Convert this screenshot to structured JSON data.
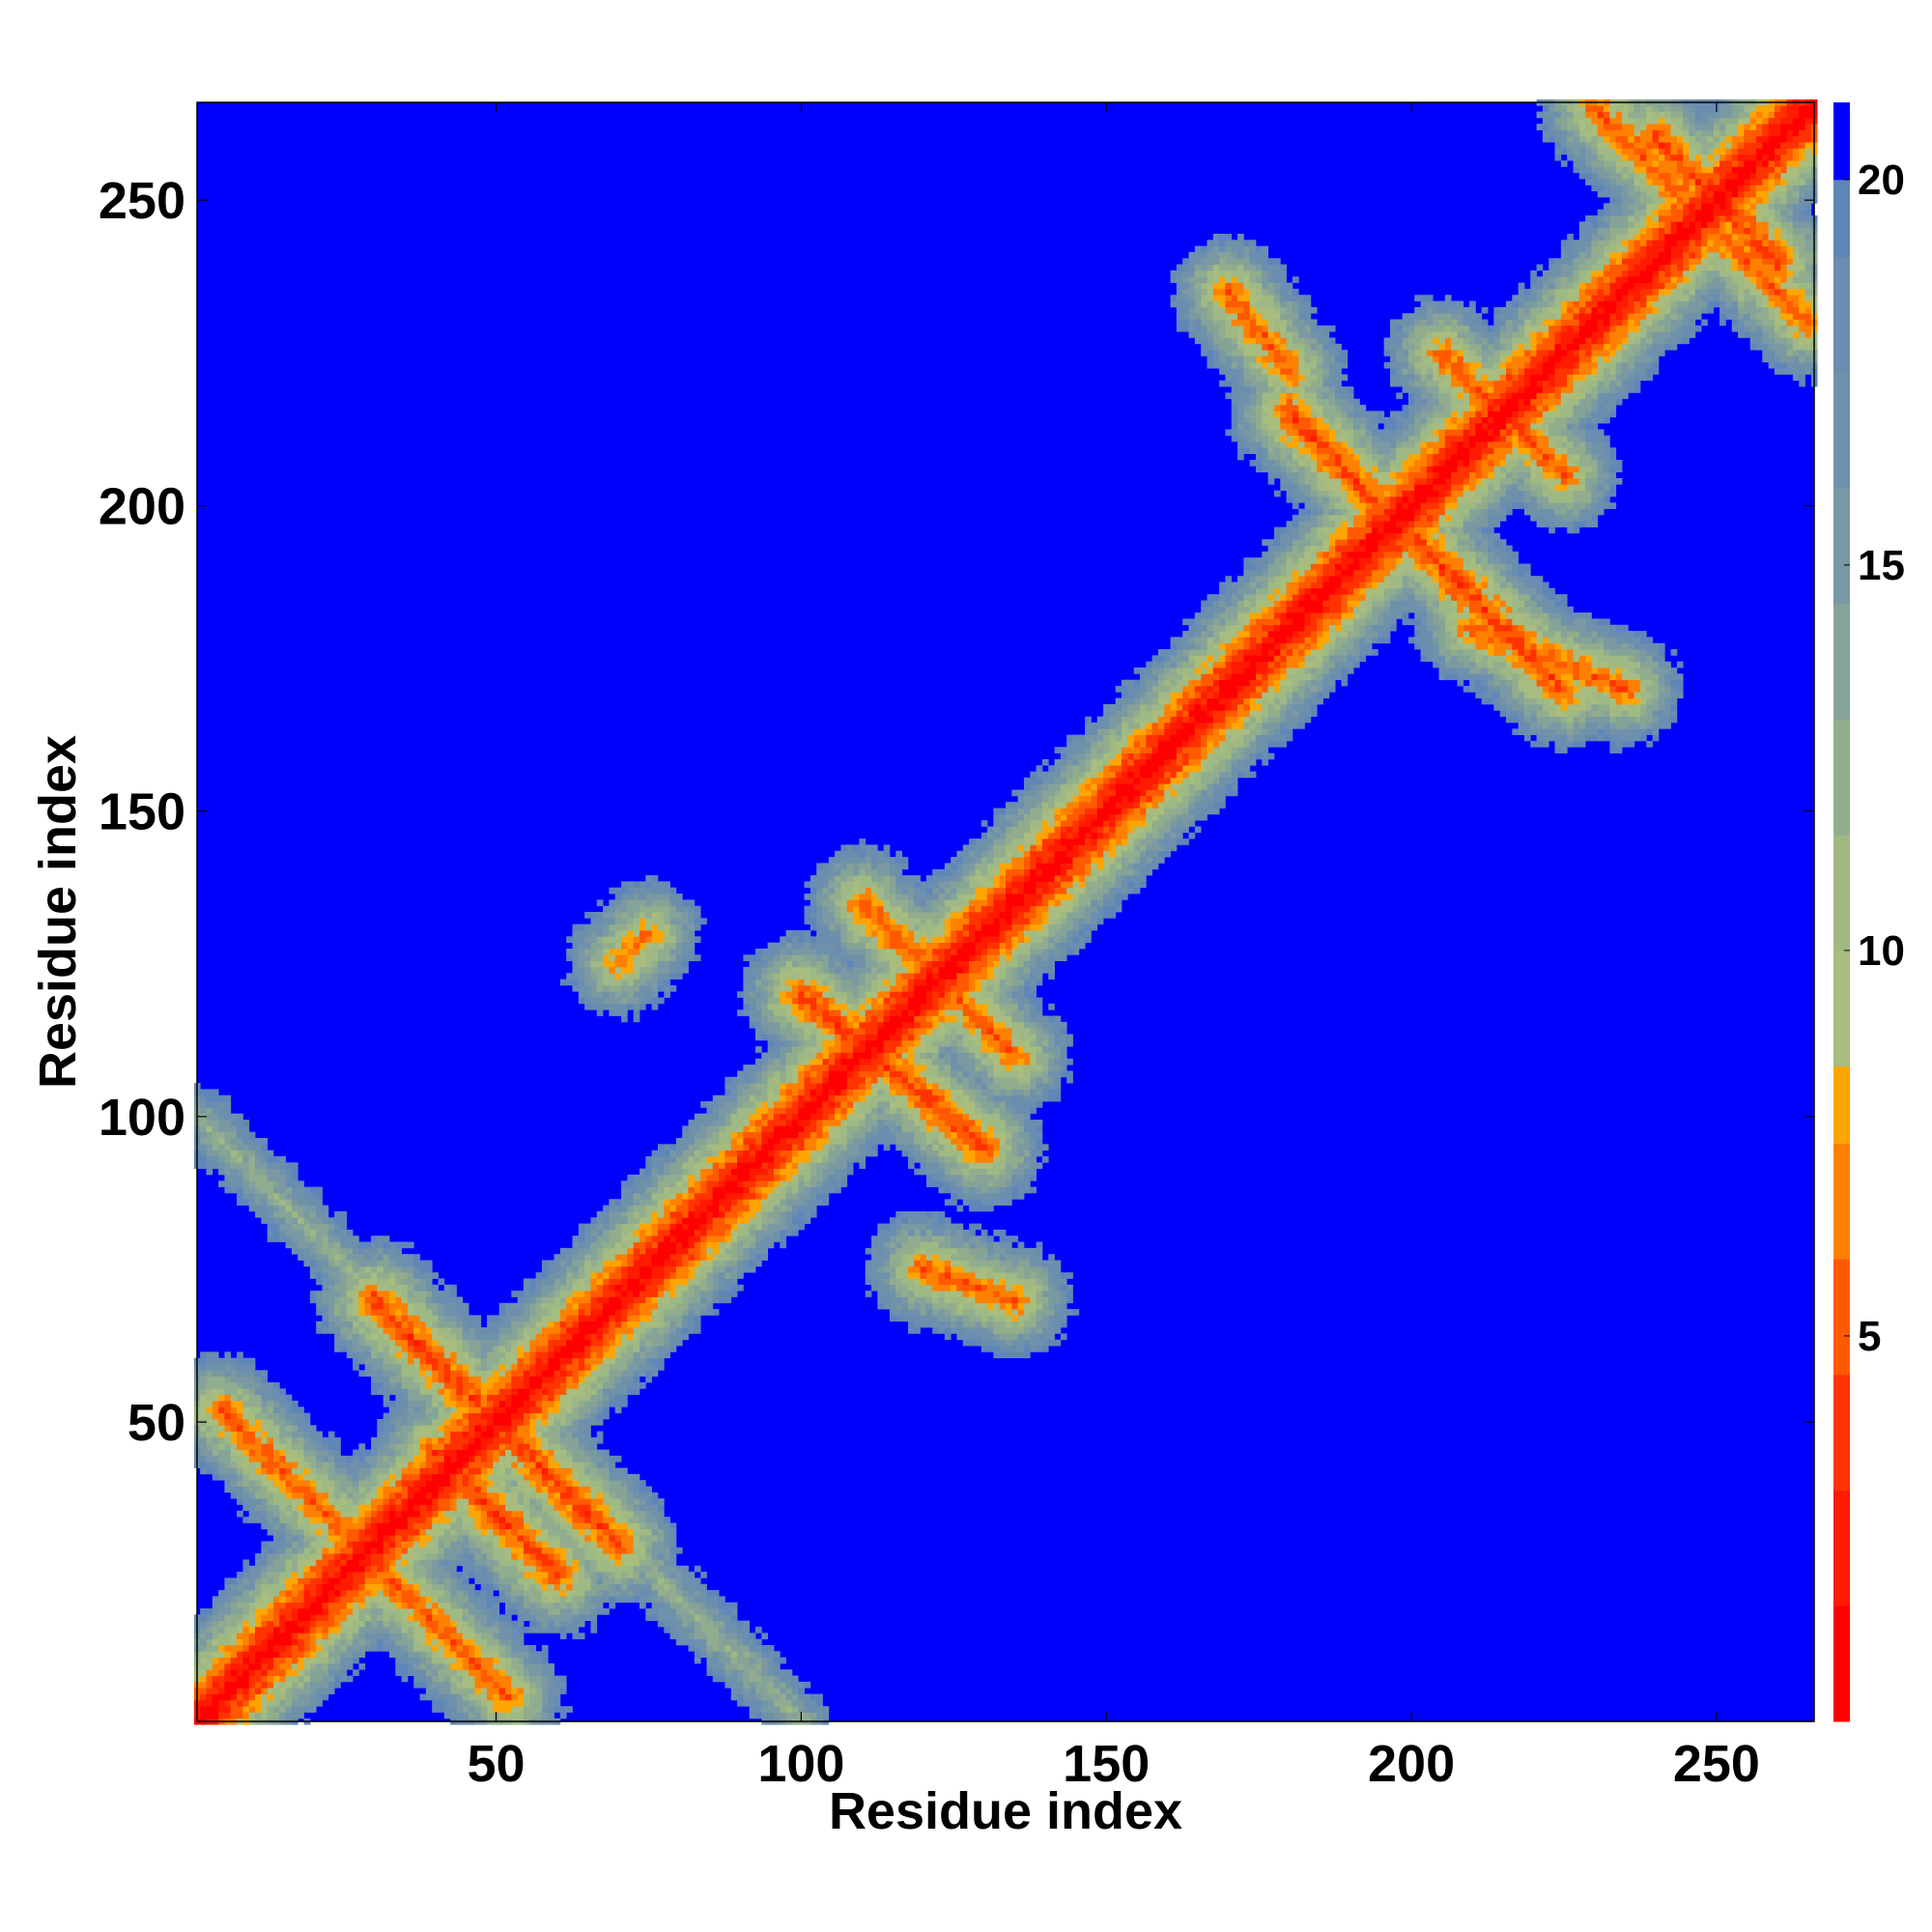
{
  "chart_data": {
    "type": "heatmap",
    "title": "",
    "xlabel": "Residue index",
    "ylabel": "Residue index",
    "xlim": [
      1,
      266
    ],
    "ylim": [
      1,
      266
    ],
    "x_ticks": [
      "50",
      "100",
      "150",
      "200",
      "250"
    ],
    "y_ticks": [
      "50",
      "100",
      "150",
      "200",
      "250"
    ],
    "x_tick_values": [
      50,
      100,
      150,
      200,
      250
    ],
    "y_tick_values": [
      50,
      100,
      150,
      200,
      250
    ],
    "colorbar": {
      "range": [
        0,
        21
      ],
      "ticks": [
        "5",
        "10",
        "15",
        "20"
      ],
      "tick_values": [
        5,
        10,
        15,
        20
      ],
      "levels": [
        {
          "max": 1.5,
          "color": "#ff0000"
        },
        {
          "max": 3.0,
          "color": "#ff1a00"
        },
        {
          "max": 4.5,
          "color": "#ff3300"
        },
        {
          "max": 6.0,
          "color": "#ff5a00"
        },
        {
          "max": 7.5,
          "color": "#ff8000"
        },
        {
          "max": 8.5,
          "color": "#ffa500"
        },
        {
          "max": 10.0,
          "color": "#a8bd7e"
        },
        {
          "max": 11.5,
          "color": "#9fb985"
        },
        {
          "max": 13.0,
          "color": "#91ad8e"
        },
        {
          "max": 14.5,
          "color": "#86a398"
        },
        {
          "max": 16.0,
          "color": "#7a99a2"
        },
        {
          "max": 17.5,
          "color": "#6f91aa"
        },
        {
          "max": 19.0,
          "color": "#6a8db0"
        },
        {
          "max": 20.0,
          "color": "#5f86b8"
        },
        {
          "max": 21.0,
          "color": "#0000ff"
        }
      ]
    },
    "background_value_color": "#0000ff",
    "description_of_values": "symmetric residue-residue distance map; diagonal ~0, contacts red/orange, mid-range greenish, far blue",
    "contact_segments": [
      {
        "from": [
          1,
          1
        ],
        "to": [
          266,
          266
        ],
        "value": 0
      },
      {
        "from": [
          1,
          100
        ],
        "to": [
          100,
          1
        ],
        "value": 12
      },
      {
        "from": [
          5,
          52
        ],
        "to": [
          52,
          5
        ],
        "value": 5
      },
      {
        "from": [
          30,
          70
        ],
        "to": [
          70,
          30
        ],
        "value": 4
      },
      {
        "from": [
          40,
          45
        ],
        "to": [
          60,
          25
        ],
        "value": 4
      },
      {
        "from": [
          100,
          120
        ],
        "to": [
          130,
          95
        ],
        "value": 4
      },
      {
        "from": [
          110,
          135
        ],
        "to": [
          135,
          110
        ],
        "value": 5
      },
      {
        "from": [
          120,
          75
        ],
        "to": [
          135,
          70
        ],
        "value": 5
      },
      {
        "from": [
          75,
          130
        ],
        "to": [
          70,
          125
        ],
        "value": 6
      },
      {
        "from": [
          180,
          215
        ],
        "to": [
          225,
          170
        ],
        "value": 4
      },
      {
        "from": [
          205,
          225
        ],
        "to": [
          225,
          205
        ],
        "value": 5
      },
      {
        "from": [
          240,
          260
        ],
        "to": [
          260,
          240
        ],
        "value": 4
      },
      {
        "from": [
          230,
          265
        ],
        "to": [
          265,
          230
        ],
        "value": 5
      },
      {
        "from": [
          170,
          235
        ],
        "to": [
          180,
          222
        ],
        "value": 5
      },
      {
        "from": [
          210,
          180
        ],
        "to": [
          235,
          170
        ],
        "value": 5
      }
    ]
  }
}
